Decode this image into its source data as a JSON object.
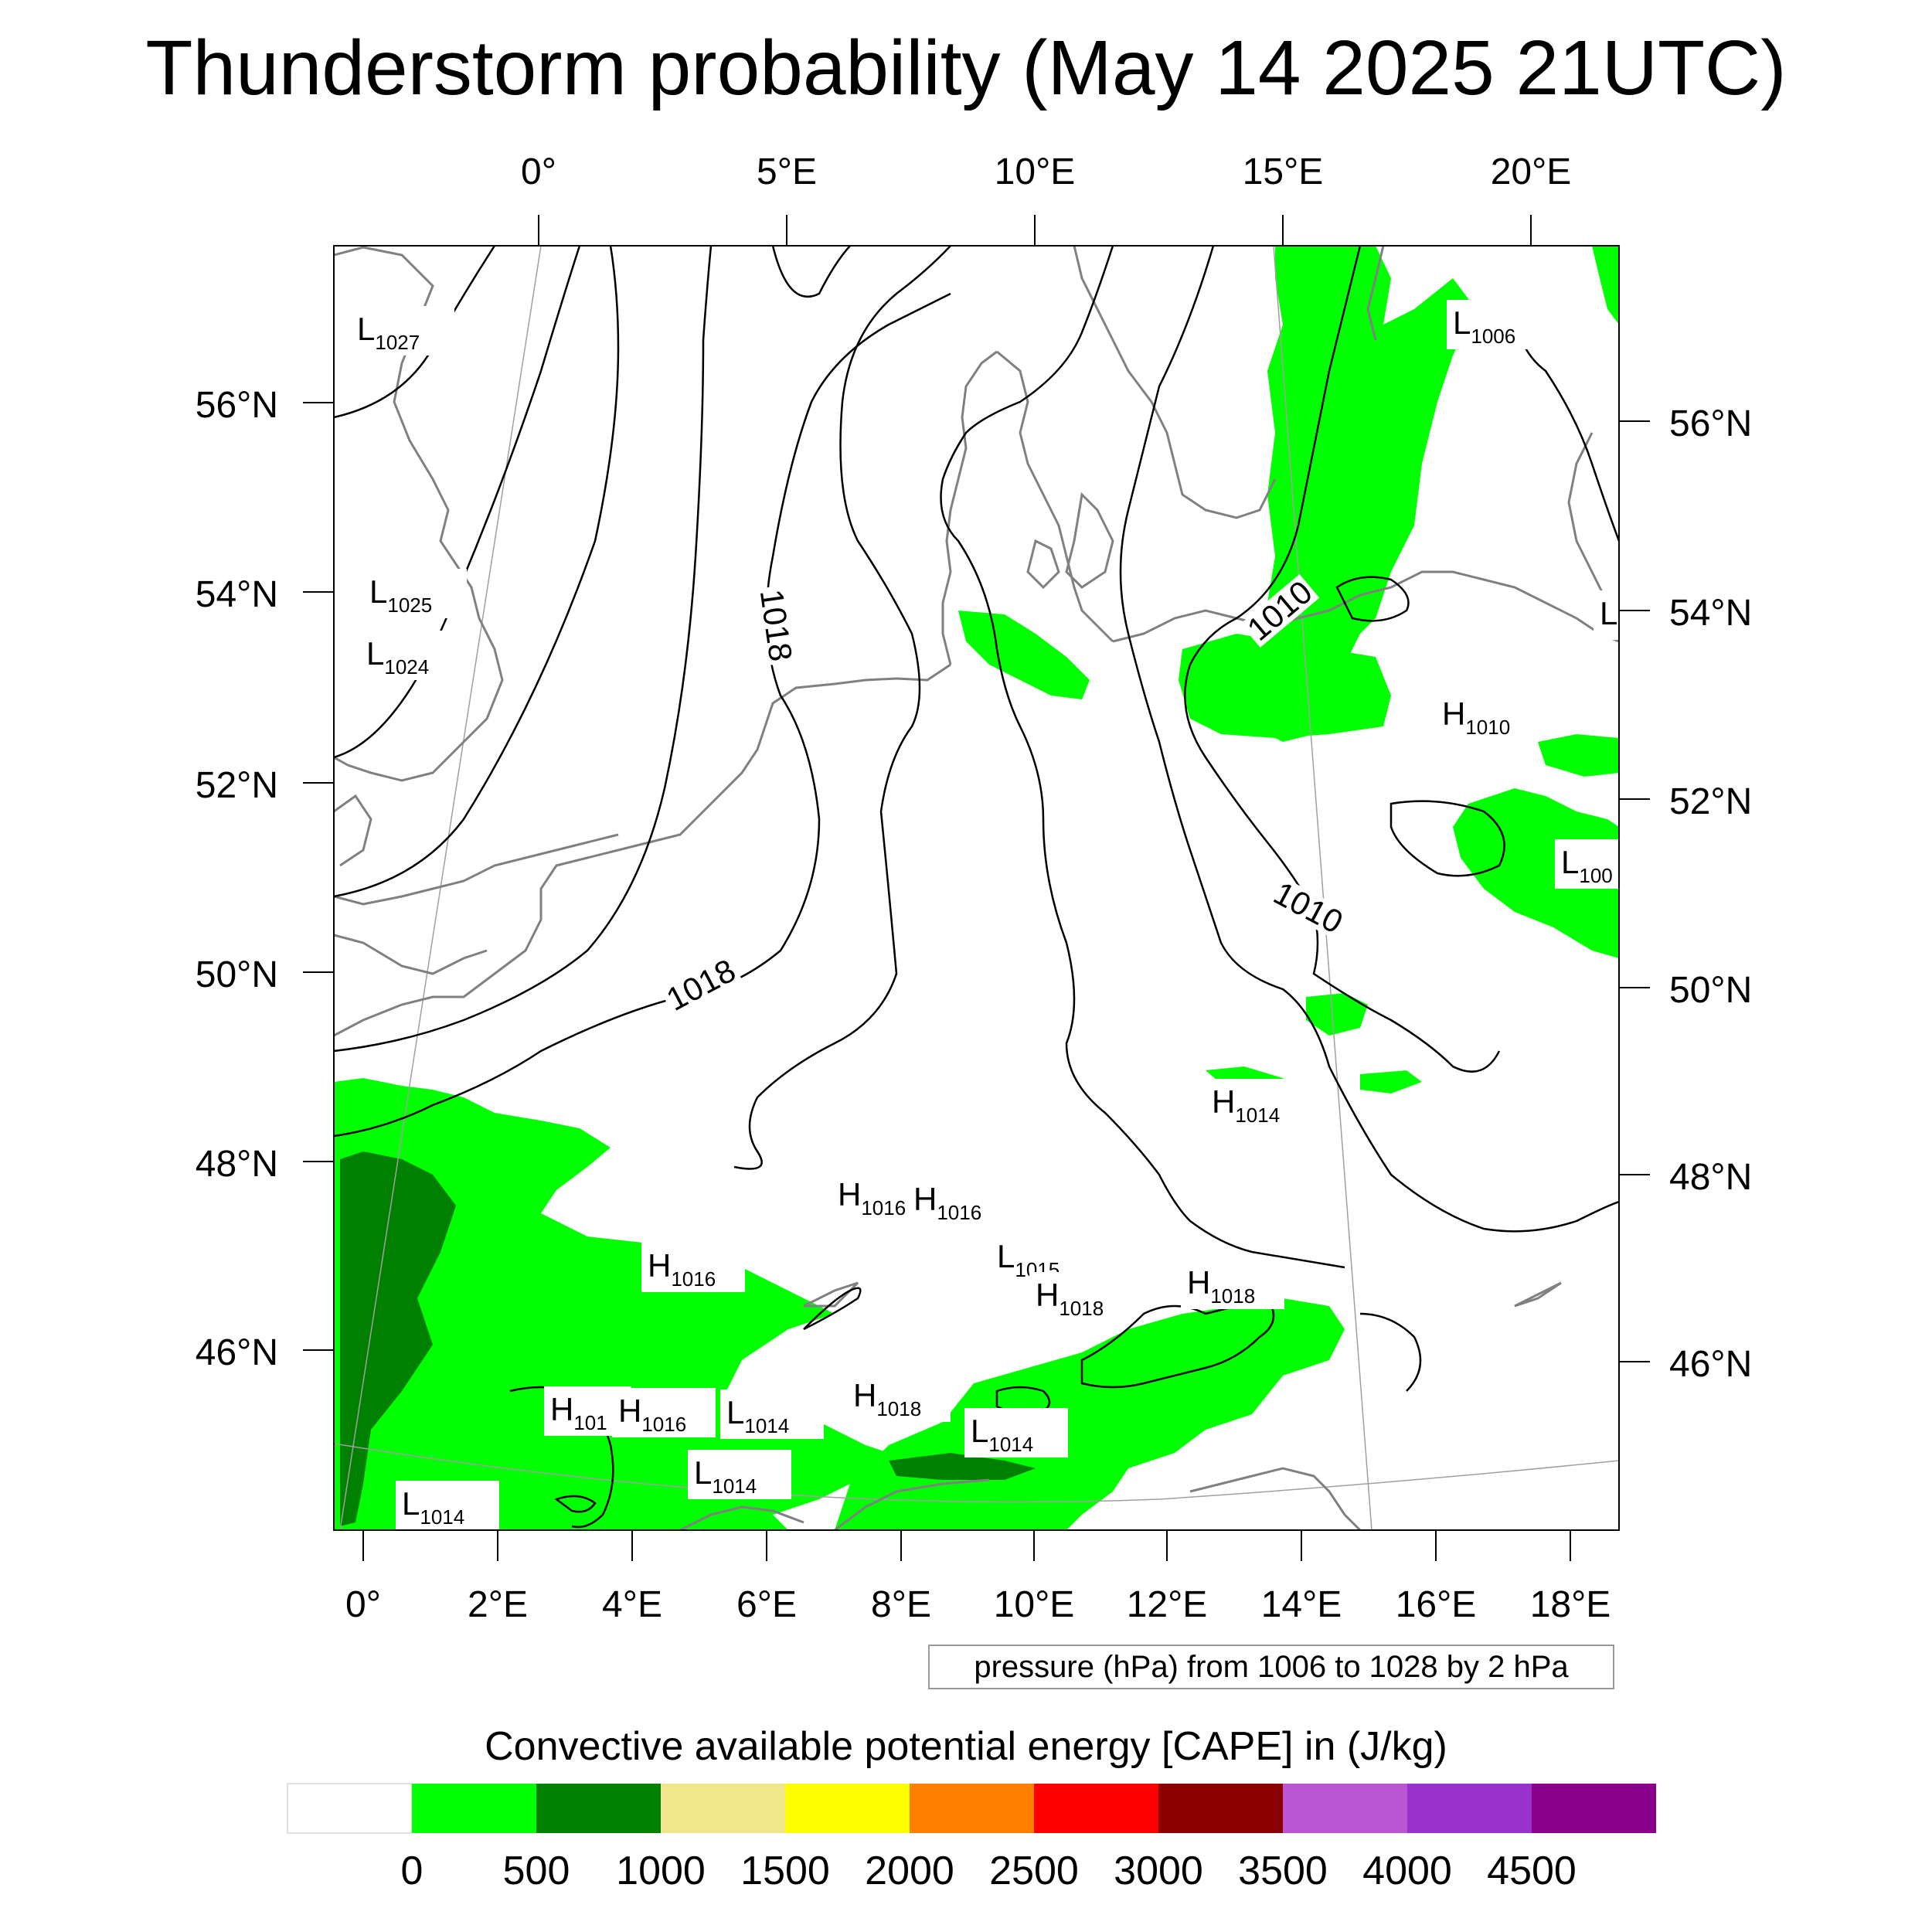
{
  "title": "Thunderstorm probability (May 14 2025 21UTC)",
  "top_lon_labels": [
    "0°",
    "5°E",
    "10°E",
    "15°E",
    "20°E"
  ],
  "bottom_lon_labels": [
    "0°",
    "2°E",
    "4°E",
    "6°E",
    "8°E",
    "10°E",
    "12°E",
    "14°E",
    "16°E",
    "18°E"
  ],
  "left_lat_labels": [
    "56°N",
    "54°N",
    "52°N",
    "50°N",
    "48°N",
    "46°N"
  ],
  "right_lat_labels": [
    "56°N",
    "54°N",
    "52°N",
    "50°N",
    "48°N",
    "46°N"
  ],
  "contour_labels": [
    "1018",
    "1018",
    "1010",
    "1010"
  ],
  "pressure_centers": [
    {
      "type": "L",
      "value": "1027"
    },
    {
      "type": "L",
      "value": "1025"
    },
    {
      "type": "L",
      "value": "1024"
    },
    {
      "type": "L",
      "value": "1006"
    },
    {
      "type": "L",
      "value": ""
    },
    {
      "type": "H",
      "value": "1010"
    },
    {
      "type": "L",
      "value": "100"
    },
    {
      "type": "H",
      "value": "1014"
    },
    {
      "type": "H",
      "value": "1016"
    },
    {
      "type": "H",
      "value": "1016"
    },
    {
      "type": "L",
      "value": "1015"
    },
    {
      "type": "H",
      "value": "1018"
    },
    {
      "type": "H",
      "value": "1018"
    },
    {
      "type": "H",
      "value": "1016"
    },
    {
      "type": "H",
      "value": "101"
    },
    {
      "type": "H",
      "value": "1016"
    },
    {
      "type": "L",
      "value": "1014"
    },
    {
      "type": "H",
      "value": "1018"
    },
    {
      "type": "L",
      "value": "1014"
    },
    {
      "type": "L",
      "value": "1014"
    },
    {
      "type": "L",
      "value": "1014"
    }
  ],
  "pressure_note": "pressure (hPa) from 1006 to 1028 by 2 hPa",
  "colorbar": {
    "title": "Convective available potential energy [CAPE] in (J/kg)",
    "colors": [
      "#ffffff",
      "#00ff00",
      "#008000",
      "#f0e68c",
      "#ffff00",
      "#ff8000",
      "#ff0000",
      "#8b0000",
      "#ba55d3",
      "#9932cc",
      "#8b008b"
    ],
    "tick_labels": [
      "0",
      "500",
      "1000",
      "1500",
      "2000",
      "2500",
      "3000",
      "3500",
      "4000",
      "4500"
    ]
  },
  "colors": {
    "coastline": "#808080",
    "isobar": "#000000",
    "graticule": "#a0a0a0"
  }
}
